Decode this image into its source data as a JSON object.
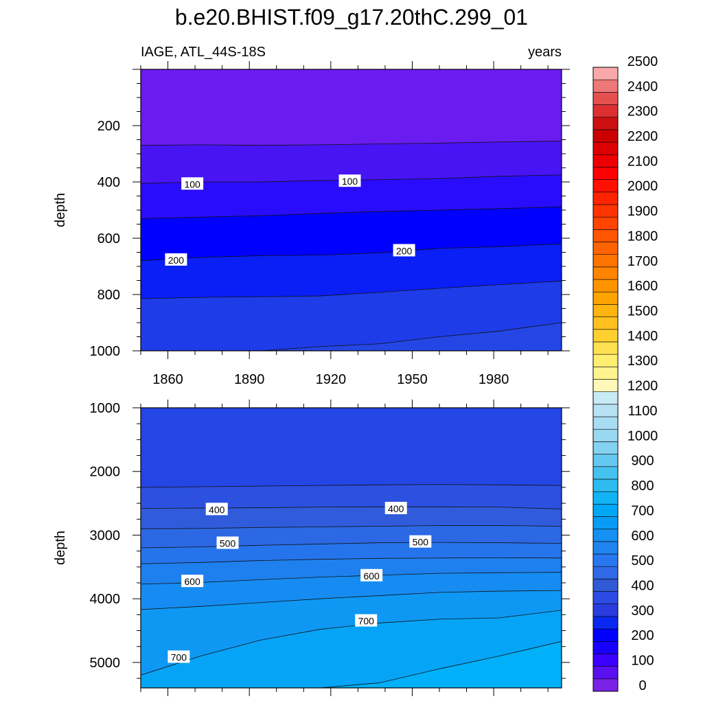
{
  "chart_data": {
    "title": "b.e20.BHIST.f09_g17.20thC.299_01",
    "left_string": "IAGE, ATL_44S-18S",
    "right_string": "years",
    "type": "contour",
    "panels": [
      {
        "ylabel": "depth",
        "xlim": [
          1850,
          2005
        ],
        "ylim": [
          1000,
          0
        ],
        "xticks": [
          "1860",
          "1890",
          "1920",
          "1950",
          "1980"
        ],
        "yticks": [
          "200",
          "400",
          "600",
          "800",
          "1000"
        ],
        "ytick_values": [
          200,
          400,
          600,
          800,
          1000
        ],
        "contours": [
          {
            "level": 50,
            "y": [
              270,
              268,
              270,
              268,
              265,
              262,
              258,
              255
            ]
          },
          {
            "level": 100,
            "y": [
              405,
              400,
              400,
              395,
              392,
              388,
              380,
              375
            ]
          },
          {
            "level": 150,
            "y": [
              530,
              525,
              520,
              512,
              505,
              500,
              495,
              488
            ]
          },
          {
            "level": 200,
            "y": [
              680,
              668,
              662,
              660,
              652,
              636,
              630,
              620
            ]
          },
          {
            "level": 250,
            "y": [
              815,
              810,
              808,
              805,
              792,
              778,
              765,
              752
            ]
          },
          {
            "level": 300,
            "y": [
              1000,
              1000,
              1000,
              985,
              975,
              950,
              930,
              900
            ]
          }
        ],
        "labels": [
          {
            "text": "100",
            "x": 1869,
            "y": 408
          },
          {
            "text": "100",
            "x": 1927,
            "y": 398
          },
          {
            "text": "200",
            "x": 1863,
            "y": 678
          },
          {
            "text": "200",
            "x": 1947,
            "y": 645
          }
        ]
      },
      {
        "ylabel": "depth",
        "xlim": [
          1850,
          2005
        ],
        "ylim": [
          5400,
          1000
        ],
        "xticks": [
          "",
          "",
          "",
          "",
          ""
        ],
        "yticks": [
          "1000",
          "2000",
          "3000",
          "4000",
          "5000"
        ],
        "ytick_values": [
          1000,
          2000,
          3000,
          4000,
          5000
        ],
        "contours": [
          {
            "level": 350,
            "y": [
              2250,
              2240,
              2230,
              2220,
              2210,
              2205,
              2210,
              2220
            ]
          },
          {
            "level": 400,
            "y": [
              2580,
              2575,
              2570,
              2560,
              2555,
              2555,
              2560,
              2590
            ]
          },
          {
            "level": 450,
            "y": [
              2900,
              2895,
              2880,
              2870,
              2860,
              2850,
              2850,
              2860
            ]
          },
          {
            "level": 500,
            "y": [
              3200,
              3185,
              3160,
              3140,
              3120,
              3115,
              3120,
              3130
            ]
          },
          {
            "level": 550,
            "y": [
              3450,
              3430,
              3400,
              3380,
              3365,
              3360,
              3355,
              3360
            ]
          },
          {
            "level": 600,
            "y": [
              3770,
              3745,
              3700,
              3660,
              3630,
              3600,
              3590,
              3585
            ]
          },
          {
            "level": 650,
            "y": [
              4170,
              4120,
              4060,
              4000,
              3950,
              3900,
              3880,
              3870
            ]
          },
          {
            "level": 700,
            "y": [
              5200,
              4900,
              4650,
              4480,
              4380,
              4320,
              4300,
              4180
            ]
          },
          {
            "level": 750,
            "y": [
              5400,
              5400,
              5400,
              5400,
              5320,
              5100,
              4900,
              4670
            ]
          }
        ],
        "labels": [
          {
            "text": "400",
            "x": 1878,
            "y": 2600
          },
          {
            "text": "400",
            "x": 1944,
            "y": 2585
          },
          {
            "text": "500",
            "x": 1882,
            "y": 3130
          },
          {
            "text": "500",
            "x": 1953,
            "y": 3110
          },
          {
            "text": "600",
            "x": 1869,
            "y": 3730
          },
          {
            "text": "600",
            "x": 1935,
            "y": 3640
          },
          {
            "text": "700",
            "x": 1933,
            "y": 4350
          },
          {
            "text": "700",
            "x": 1864,
            "y": 4920
          }
        ]
      }
    ],
    "contour_x": [
      1850,
      1872,
      1894,
      1916,
      1938,
      1960,
      1982,
      2005
    ],
    "colorbar": {
      "labels": [
        "0",
        "100",
        "200",
        "300",
        "400",
        "500",
        "600",
        "700",
        "800",
        "900",
        "1000",
        "1100",
        "1200",
        "1300",
        "1400",
        "1500",
        "1600",
        "1700",
        "1800",
        "1900",
        "2000",
        "2100",
        "2200",
        "2300",
        "2400",
        "2500"
      ],
      "colors": [
        "#7a22e6",
        "#5a10ee",
        "#3c00ff",
        "#1800ff",
        "#0000ff",
        "#0a28f0",
        "#2a3ce0",
        "#2c4be4",
        "#305ad6",
        "#2f6ae6",
        "#2877ee",
        "#1f84f0",
        "#1690f2",
        "#0a9cf4",
        "#00a8f6",
        "#12b4f6",
        "#2ebcf0",
        "#46c2ee",
        "#64c8f0",
        "#84d2f0",
        "#98d8f0",
        "#a8dcf2",
        "#b8e2f4",
        "#c8eaf4",
        "#fff8b8",
        "#fff490",
        "#ffee70",
        "#ffe050",
        "#ffd030",
        "#ffc020",
        "#ffb410",
        "#ffa400",
        "#ff9400",
        "#ff8400",
        "#ff7400",
        "#ff6400",
        "#ff5400",
        "#ff4400",
        "#ff3400",
        "#ff2400",
        "#ff1000",
        "#ff0000",
        "#ee0000",
        "#dd0000",
        "#cc0000",
        "#cc1010",
        "#dc3030",
        "#e65050",
        "#ee7878",
        "#f8a8a8"
      ]
    },
    "fill_colors": {
      "0": "#6a1cf0",
      "50": "#4814f4",
      "100": "#2a0cfc",
      "150": "#0000ff",
      "200": "#0a1ef6",
      "250": "#1e3ce8",
      "300": "#2446e4",
      "350": "#2c50e0",
      "400": "#305cdc",
      "450": "#2c68e4",
      "500": "#2674ec",
      "550": "#1e80ee",
      "600": "#168cf2",
      "650": "#0e98f4",
      "700": "#06a4f6",
      "750": "#00b0f8"
    }
  }
}
